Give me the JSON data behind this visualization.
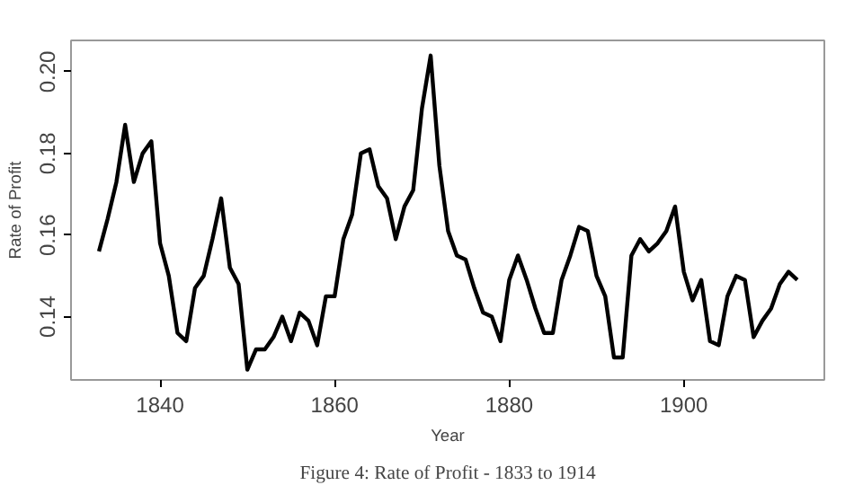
{
  "chart_data": {
    "type": "line",
    "xlabel": "Year",
    "ylabel": "Rate of Profit",
    "annotations": [
      "Figure 4: Rate of Profit - 1833 to 1914"
    ],
    "x": [
      1833,
      1834,
      1835,
      1836,
      1837,
      1838,
      1839,
      1840,
      1841,
      1842,
      1843,
      1844,
      1845,
      1846,
      1847,
      1848,
      1849,
      1850,
      1851,
      1852,
      1853,
      1854,
      1855,
      1856,
      1857,
      1858,
      1859,
      1860,
      1861,
      1862,
      1863,
      1864,
      1865,
      1866,
      1867,
      1868,
      1869,
      1870,
      1871,
      1872,
      1873,
      1874,
      1875,
      1876,
      1877,
      1878,
      1879,
      1880,
      1881,
      1882,
      1883,
      1884,
      1885,
      1886,
      1887,
      1888,
      1889,
      1890,
      1891,
      1892,
      1893,
      1894,
      1895,
      1896,
      1897,
      1898,
      1899,
      1900,
      1901,
      1902,
      1903,
      1904,
      1905,
      1906,
      1907,
      1908,
      1909,
      1910,
      1911,
      1912,
      1913
    ],
    "series": [
      {
        "color": "#000000",
        "values": [
          0.156,
          0.164,
          0.173,
          0.187,
          0.173,
          0.18,
          0.183,
          0.158,
          0.15,
          0.136,
          0.134,
          0.147,
          0.15,
          0.159,
          0.169,
          0.152,
          0.148,
          0.127,
          0.132,
          0.132,
          0.135,
          0.14,
          0.134,
          0.141,
          0.139,
          0.133,
          0.145,
          0.145,
          0.159,
          0.165,
          0.18,
          0.181,
          0.172,
          0.169,
          0.159,
          0.167,
          0.171,
          0.191,
          0.204,
          0.177,
          0.161,
          0.155,
          0.154,
          0.147,
          0.141,
          0.14,
          0.134,
          0.149,
          0.155,
          0.149,
          0.142,
          0.136,
          0.136,
          0.149,
          0.155,
          0.162,
          0.161,
          0.15,
          0.145,
          0.13,
          0.13,
          0.155,
          0.159,
          0.156,
          0.158,
          0.161,
          0.167,
          0.151,
          0.144,
          0.149,
          0.134,
          0.133,
          0.145,
          0.15,
          0.149,
          0.135,
          0.139,
          0.142,
          0.148,
          0.151,
          0.149
        ]
      }
    ],
    "xlim": [
      1829.8,
      1916.1
    ],
    "ylim": [
      0.1245,
      0.2077
    ],
    "xticks": [
      1840,
      1860,
      1880,
      1900
    ],
    "yticks": [
      0.14,
      0.16,
      0.18,
      {
        "value": 0.2,
        "label": "0.20"
      }
    ],
    "grid": false,
    "marker": "none",
    "line_style": "solid"
  }
}
